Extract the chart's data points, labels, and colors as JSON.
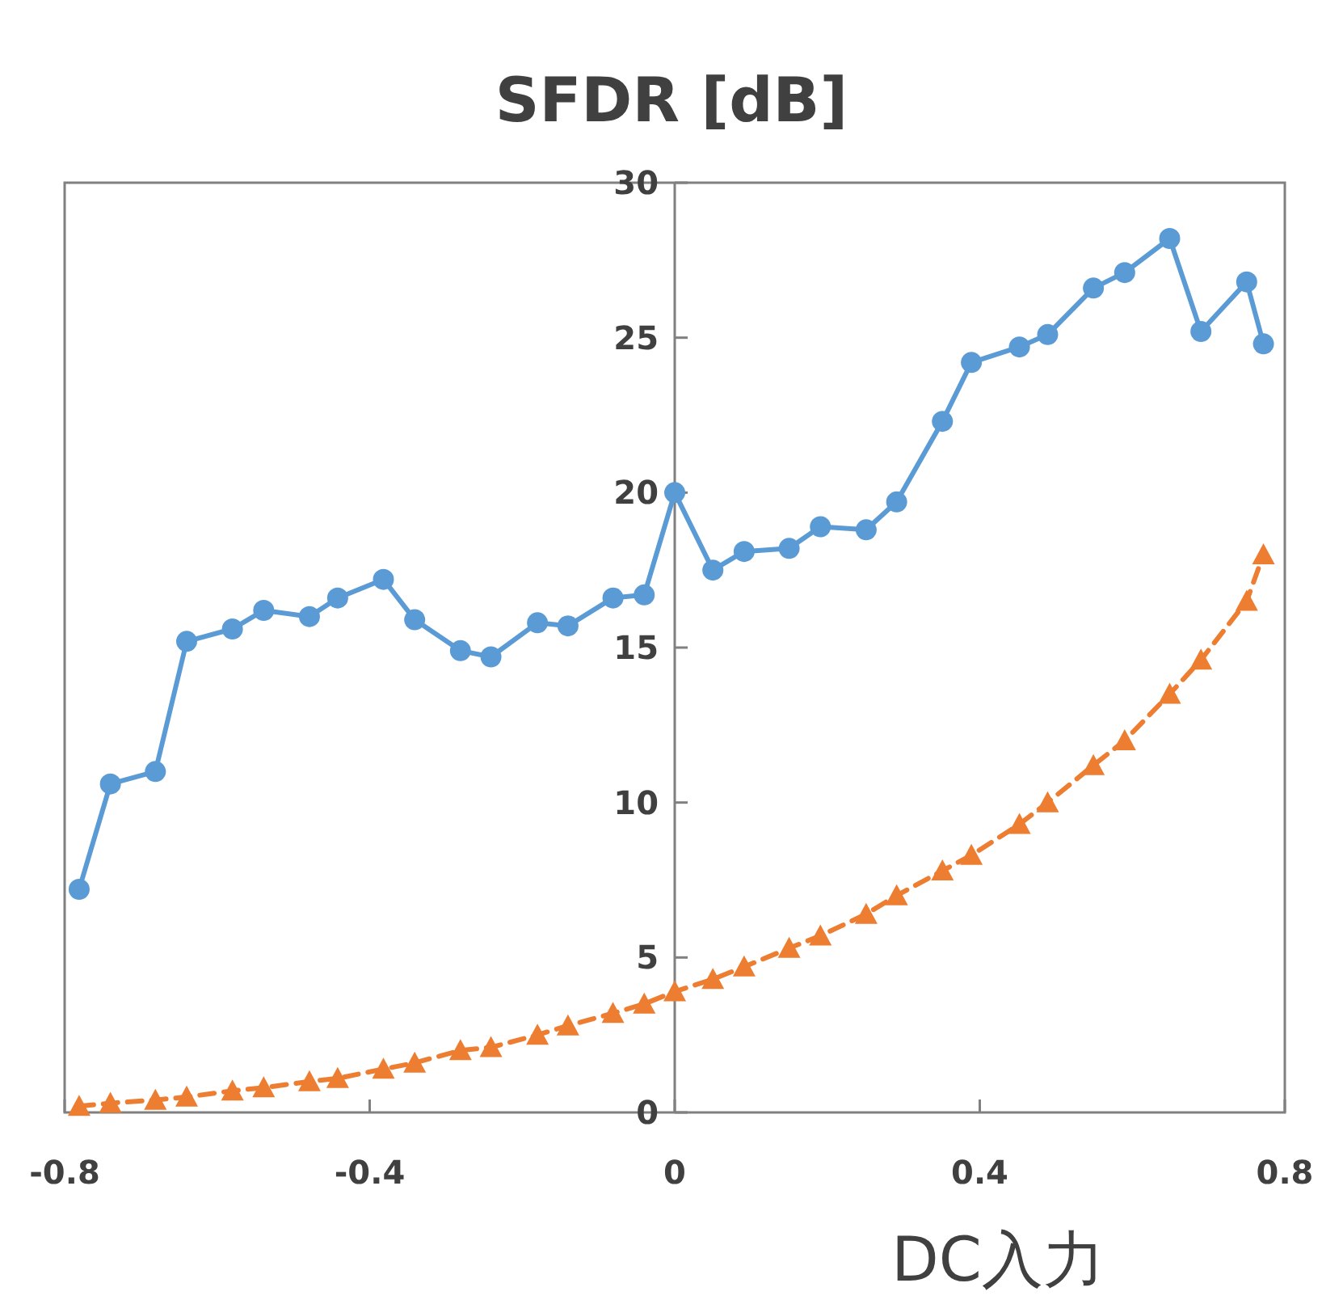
{
  "chart_data": {
    "type": "line",
    "title": "SFDR [dB]",
    "xlabel": "DC入力",
    "x": [
      -0.781,
      -0.74,
      -0.681,
      -0.64,
      -0.58,
      -0.539,
      -0.479,
      -0.442,
      -0.382,
      -0.341,
      -0.281,
      -0.241,
      -0.18,
      -0.14,
      -0.081,
      -0.04,
      0,
      0.05,
      0.091,
      0.15,
      0.191,
      0.251,
      0.291,
      0.351,
      0.389,
      0.452,
      0.489,
      0.549,
      0.59,
      0.649,
      0.69,
      0.75,
      0.772
    ],
    "series": [
      {
        "color": "#5b9bd5",
        "marker": "circle",
        "line_style": "solid",
        "values": [
          7.2,
          10.6,
          11.0,
          15.2,
          15.6,
          16.2,
          16.0,
          16.6,
          17.2,
          15.9,
          14.9,
          14.7,
          15.8,
          15.7,
          16.6,
          16.7,
          20.0,
          17.5,
          18.1,
          18.2,
          18.9,
          18.8,
          19.7,
          22.3,
          24.2,
          24.7,
          25.1,
          26.6,
          27.1,
          28.2,
          25.2,
          26.8,
          24.8
        ]
      },
      {
        "color": "#ed7d31",
        "marker": "triangle",
        "line_style": "dashed",
        "values": [
          0.2,
          0.3,
          0.4,
          0.5,
          0.7,
          0.8,
          1.0,
          1.1,
          1.4,
          1.6,
          2.0,
          2.1,
          2.5,
          2.8,
          3.2,
          3.5,
          3.9,
          4.3,
          4.7,
          5.3,
          5.7,
          6.4,
          7.0,
          7.8,
          8.3,
          9.3,
          10.0,
          11.2,
          12.0,
          13.5,
          14.6,
          16.5,
          18.0
        ]
      }
    ],
    "xlim": [
      -0.8,
      0.8
    ],
    "xticks": [
      -0.8,
      -0.4,
      0,
      0.4,
      0.8
    ],
    "ylim": [
      0,
      30
    ],
    "yticks": [
      0,
      5,
      10,
      15,
      20,
      25,
      30
    ]
  }
}
